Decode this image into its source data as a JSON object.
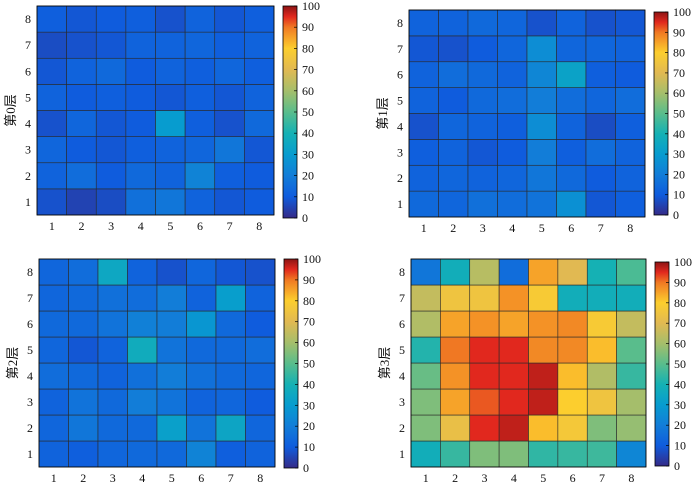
{
  "chart_data": [
    {
      "type": "heatmap",
      "ylabel": "第0层",
      "x_categories": [
        "1",
        "2",
        "3",
        "4",
        "5",
        "6",
        "7",
        "8"
      ],
      "y_categories": [
        "1",
        "2",
        "3",
        "4",
        "5",
        "6",
        "7",
        "8"
      ],
      "values": [
        [
          8,
          5,
          7,
          16,
          18,
          12,
          9,
          10
        ],
        [
          12,
          15,
          10,
          14,
          12,
          22,
          11,
          10
        ],
        [
          13,
          10,
          9,
          11,
          12,
          13,
          18,
          9
        ],
        [
          8,
          13,
          9,
          10,
          30,
          11,
          8,
          14
        ],
        [
          12,
          10,
          11,
          10,
          9,
          11,
          9,
          12
        ],
        [
          9,
          12,
          14,
          10,
          12,
          11,
          13,
          11
        ],
        [
          7,
          8,
          9,
          12,
          12,
          13,
          11,
          12
        ],
        [
          11,
          9,
          10,
          11,
          8,
          12,
          9,
          11
        ]
      ],
      "colorbar": {
        "min": 0,
        "max": 100,
        "ticks": [
          0,
          10,
          20,
          30,
          40,
          50,
          60,
          70,
          80,
          90,
          100
        ]
      }
    },
    {
      "type": "heatmap",
      "ylabel": "第1层",
      "x_categories": [
        "1",
        "2",
        "3",
        "4",
        "5",
        "6",
        "7",
        "8"
      ],
      "y_categories": [
        "1",
        "2",
        "3",
        "4",
        "5",
        "6",
        "7",
        "8"
      ],
      "values": [
        [
          14,
          13,
          16,
          15,
          17,
          26,
          9,
          11
        ],
        [
          12,
          13,
          12,
          13,
          18,
          14,
          10,
          12
        ],
        [
          11,
          12,
          9,
          10,
          20,
          11,
          15,
          12
        ],
        [
          8,
          13,
          12,
          11,
          25,
          12,
          7,
          11
        ],
        [
          12,
          10,
          14,
          15,
          20,
          15,
          13,
          15
        ],
        [
          12,
          15,
          14,
          12,
          23,
          33,
          11,
          10
        ],
        [
          9,
          8,
          10,
          13,
          25,
          13,
          13,
          12
        ],
        [
          12,
          12,
          14,
          13,
          8,
          12,
          8,
          9
        ]
      ],
      "colorbar": {
        "min": 0,
        "max": 100,
        "ticks": [
          0,
          10,
          20,
          30,
          40,
          50,
          60,
          70,
          80,
          90,
          100
        ]
      }
    },
    {
      "type": "heatmap",
      "ylabel": "第2层",
      "x_categories": [
        "1",
        "2",
        "3",
        "4",
        "5",
        "6",
        "7",
        "8"
      ],
      "y_categories": [
        "1",
        "2",
        "3",
        "4",
        "5",
        "6",
        "7",
        "8"
      ],
      "values": [
        [
          12,
          11,
          13,
          14,
          14,
          22,
          11,
          12
        ],
        [
          13,
          18,
          14,
          14,
          32,
          17,
          34,
          13
        ],
        [
          12,
          17,
          14,
          20,
          17,
          12,
          13,
          10
        ],
        [
          15,
          14,
          12,
          16,
          20,
          16,
          14,
          13
        ],
        [
          13,
          9,
          12,
          37,
          17,
          14,
          14,
          15
        ],
        [
          14,
          14,
          17,
          21,
          20,
          28,
          14,
          10
        ],
        [
          13,
          14,
          16,
          15,
          20,
          12,
          31,
          12
        ],
        [
          13,
          15,
          35,
          12,
          8,
          13,
          9,
          8
        ]
      ],
      "colorbar": {
        "min": 0,
        "max": 100,
        "ticks": [
          0,
          10,
          20,
          30,
          40,
          50,
          60,
          70,
          80,
          90,
          100
        ]
      }
    },
    {
      "type": "heatmap",
      "ylabel": "第3层",
      "x_categories": [
        "1",
        "2",
        "3",
        "4",
        "5",
        "6",
        "7",
        "8"
      ],
      "y_categories": [
        "1",
        "2",
        "3",
        "4",
        "5",
        "6",
        "7",
        "8"
      ],
      "values": [
        [
          38,
          45,
          55,
          55,
          44,
          45,
          46,
          23
        ],
        [
          55,
          73,
          95,
          97,
          82,
          77,
          55,
          58
        ],
        [
          55,
          85,
          92,
          95,
          97,
          80,
          75,
          60
        ],
        [
          52,
          87,
          95,
          95,
          97,
          82,
          62,
          45
        ],
        [
          42,
          90,
          95,
          95,
          88,
          88,
          82,
          50
        ],
        [
          62,
          85,
          87,
          85,
          87,
          88,
          78,
          65
        ],
        [
          65,
          75,
          75,
          87,
          78,
          38,
          38,
          38
        ],
        [
          18,
          38,
          63,
          15,
          85,
          70,
          40,
          48
        ]
      ],
      "colorbar": {
        "min": 0,
        "max": 100,
        "ticks": [
          0,
          10,
          20,
          30,
          40,
          50,
          60,
          70,
          80,
          90,
          100
        ]
      }
    }
  ]
}
